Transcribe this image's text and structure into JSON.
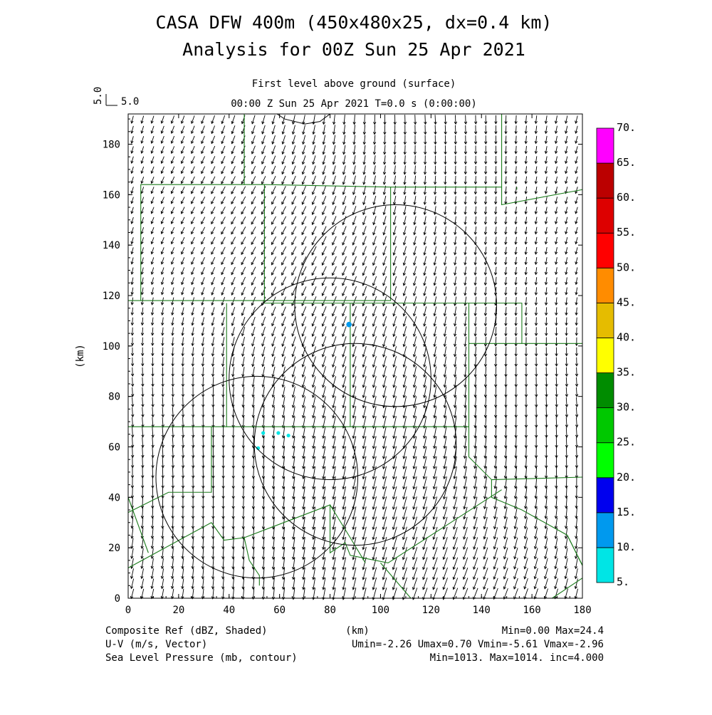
{
  "header": {
    "title_line1": "CASA DFW 400m (450x480x25, dx=0.4 km)",
    "title_line2": "Analysis for 00Z Sun 25 Apr 2021",
    "level": "First level above ground (surface)",
    "time": "00:00 Z Sun 25 Apr 2021    T=0.0 s (0:00:00)",
    "ref_vector_value": "5.0",
    "ref_vector_label": "5.0"
  },
  "footer": {
    "left1": "Composite Ref (dBZ, Shaded)",
    "left2": "U-V (m/s, Vector)",
    "left3": "Sea Level Pressure (mb, contour)",
    "center1": "(km)",
    "right1": "Min=0.00 Max=24.4",
    "right2": "Umin=-2.26 Umax=0.70 Vmin=-5.61 Vmax=-2.96",
    "right3": "Min=1013. Max=1014. inc=4.000"
  },
  "chart_data": {
    "type": "heatmap",
    "xlabel": "(km)",
    "ylabel": "(km)",
    "xlim": [
      0,
      180
    ],
    "ylim": [
      0,
      192
    ],
    "x_ticks": [
      0,
      20,
      40,
      60,
      80,
      100,
      120,
      140,
      160,
      180
    ],
    "y_ticks": [
      0,
      20,
      40,
      60,
      80,
      100,
      120,
      140,
      160,
      180
    ],
    "colorbar": {
      "levels": [
        "5.",
        "10.",
        "15.",
        "20.",
        "25.",
        "30.",
        "35.",
        "40.",
        "45.",
        "50.",
        "55.",
        "60.",
        "65.",
        "70."
      ],
      "colors": [
        "#00e5e5",
        "#0099ee",
        "#0000ee",
        "#00ff00",
        "#00c800",
        "#008c00",
        "#ffff00",
        "#e5bc00",
        "#ff8c00",
        "#ff0000",
        "#dd0000",
        "#bb0000",
        "#ff00ff"
      ]
    },
    "radar_rings": [
      {
        "cx": 51,
        "cy": 48,
        "r": 40
      },
      {
        "cx": 80,
        "cy": 87,
        "r": 40
      },
      {
        "cx": 106,
        "cy": 116,
        "r": 40
      },
      {
        "cx": 90,
        "cy": 61,
        "r": 40
      }
    ],
    "echoes": [
      {
        "x": 87.5,
        "y": 108.5,
        "dbz": 12
      },
      {
        "x": 59.5,
        "y": 65.5,
        "dbz": 6
      },
      {
        "x": 53.5,
        "y": 65.5,
        "dbz": 5
      },
      {
        "x": 63.5,
        "y": 64.5,
        "dbz": 5
      },
      {
        "x": 51.5,
        "y": 59.5,
        "dbz": 5
      }
    ],
    "wind": {
      "u_range": [
        -2.26,
        0.7
      ],
      "v_range": [
        -5.61,
        -2.96
      ],
      "reference_ms": 5.0
    },
    "pressure": {
      "min": 1013,
      "max": 1014,
      "inc": 4
    }
  }
}
